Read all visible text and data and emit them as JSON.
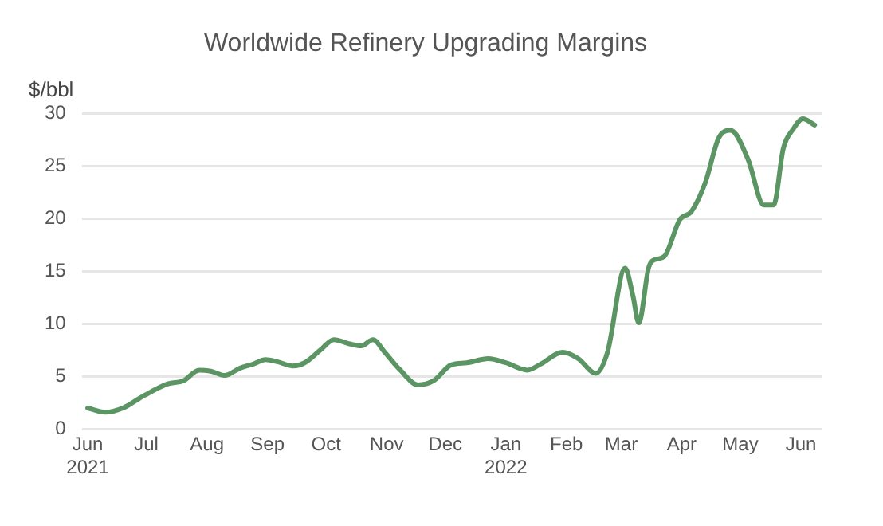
{
  "chart_data": {
    "type": "line",
    "title": "Worldwide Refinery Upgrading Margins",
    "ylabel": "$/bbl",
    "x": [
      "2021-06-01",
      "2021-06-10",
      "2021-06-19",
      "2021-06-30",
      "2021-07-12",
      "2021-07-20",
      "2021-07-28",
      "2021-08-03",
      "2021-08-10",
      "2021-08-18",
      "2021-08-25",
      "2021-08-31",
      "2021-09-06",
      "2021-09-14",
      "2021-09-20",
      "2021-09-28",
      "2021-10-05",
      "2021-10-13",
      "2021-10-19",
      "2021-10-25",
      "2021-10-31",
      "2021-11-08",
      "2021-11-17",
      "2021-11-25",
      "2021-12-04",
      "2021-12-12",
      "2021-12-23",
      "2022-01-01",
      "2022-01-12",
      "2022-01-19",
      "2022-01-30",
      "2022-02-07",
      "2022-02-16",
      "2022-02-22",
      "2022-03-03",
      "2022-03-07",
      "2022-03-10",
      "2022-03-15",
      "2022-03-17",
      "2022-03-23",
      "2022-03-31",
      "2022-04-06",
      "2022-04-13",
      "2022-04-20",
      "2022-04-26",
      "2022-05-05",
      "2022-05-13",
      "2022-05-18",
      "2022-05-23",
      "2022-05-28",
      "2022-06-02",
      "2022-06-08"
    ],
    "series": [
      {
        "color": "#5b9563",
        "values": [
          2.0,
          1.6,
          2.0,
          3.2,
          4.3,
          4.6,
          5.6,
          5.5,
          5.1,
          5.8,
          6.2,
          6.6,
          6.4,
          6.0,
          6.3,
          7.5,
          8.5,
          8.1,
          7.9,
          8.5,
          7.3,
          5.6,
          4.2,
          4.6,
          6.1,
          6.3,
          6.7,
          6.3,
          5.6,
          6.2,
          7.3,
          6.7,
          5.3,
          7.3,
          15.3,
          12.7,
          10.1,
          15.3,
          16.0,
          16.4,
          19.9,
          20.7,
          23.4,
          27.7,
          28.4,
          25.6,
          21.3,
          21.3,
          26.7,
          28.5,
          29.5,
          28.9
        ]
      }
    ],
    "xlim": [
      "2021-05-29",
      "2022-06-12"
    ],
    "xticks": [
      {
        "value": "2021-06-01",
        "label": "Jun 2021"
      },
      {
        "value": "2021-07-01",
        "label": "Jul"
      },
      {
        "value": "2021-08-01",
        "label": "Aug"
      },
      {
        "value": "2021-09-01",
        "label": "Sep"
      },
      {
        "value": "2021-10-01",
        "label": "Oct"
      },
      {
        "value": "2021-11-01",
        "label": "Nov"
      },
      {
        "value": "2021-12-01",
        "label": "Dec"
      },
      {
        "value": "2022-01-01",
        "label": "Jan 2022"
      },
      {
        "value": "2022-02-01",
        "label": "Feb"
      },
      {
        "value": "2022-03-01",
        "label": "Mar"
      },
      {
        "value": "2022-04-01",
        "label": "Apr"
      },
      {
        "value": "2022-05-01",
        "label": "May"
      },
      {
        "value": "2022-06-01",
        "label": "Jun"
      }
    ],
    "ylim": [
      0,
      30
    ],
    "yticks": [
      0,
      5,
      10,
      15,
      20,
      25,
      30
    ],
    "grid": "y",
    "legend": false,
    "marker": "none",
    "line_style": "solid"
  }
}
